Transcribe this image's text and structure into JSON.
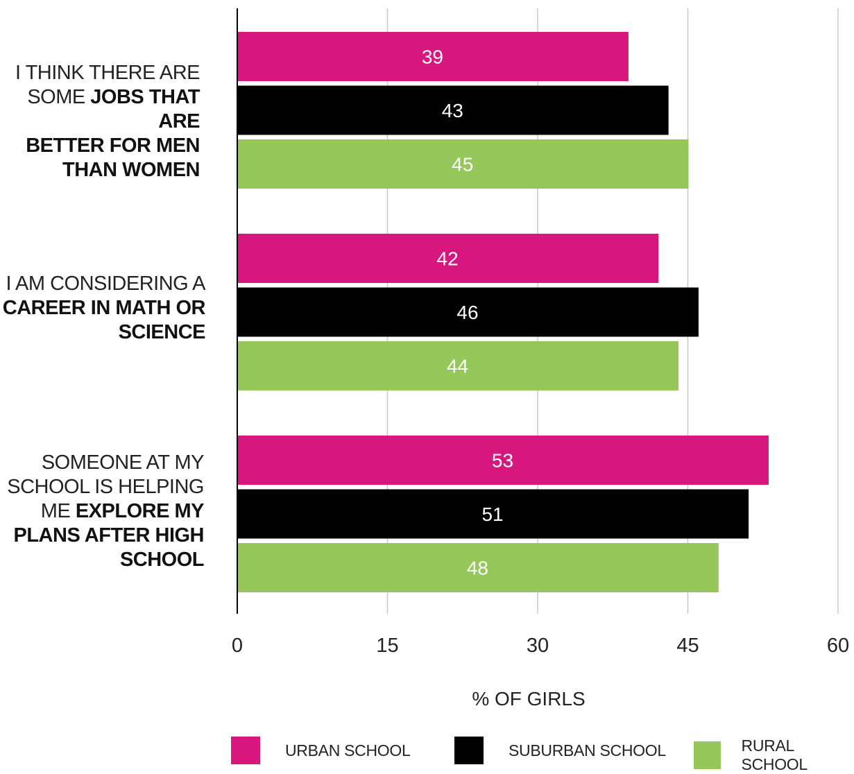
{
  "chart_data": {
    "type": "bar",
    "orientation": "horizontal",
    "categories": [
      {
        "prefix": "I THINK THERE ARE SOME ",
        "bold": "JOBS THAT ARE BETTER FOR MEN THAN WOMEN"
      },
      {
        "prefix": "I AM CONSIDERING A ",
        "bold": "CAREER IN MATH OR SCIENCE"
      },
      {
        "prefix": "SOMEONE AT MY SCHOOL IS HELPING ME ",
        "bold": "EXPLORE MY PLANS AFTER HIGH SCHOOL"
      }
    ],
    "series": [
      {
        "name": "URBAN SCHOOL",
        "color": "#d8177e",
        "values": [
          39,
          42,
          53
        ]
      },
      {
        "name": "SUBURBAN SCHOOL",
        "color": "#000000",
        "values": [
          43,
          46,
          51
        ]
      },
      {
        "name": "RURAL SCHOOL",
        "color": "#95c75a",
        "values": [
          45,
          44,
          48
        ]
      }
    ],
    "xlabel": "% OF GIRLS",
    "xlim": [
      0,
      60
    ],
    "xticks": [
      "0",
      "15",
      "30",
      "45",
      "60"
    ],
    "grid": true,
    "legend_position": "bottom"
  }
}
